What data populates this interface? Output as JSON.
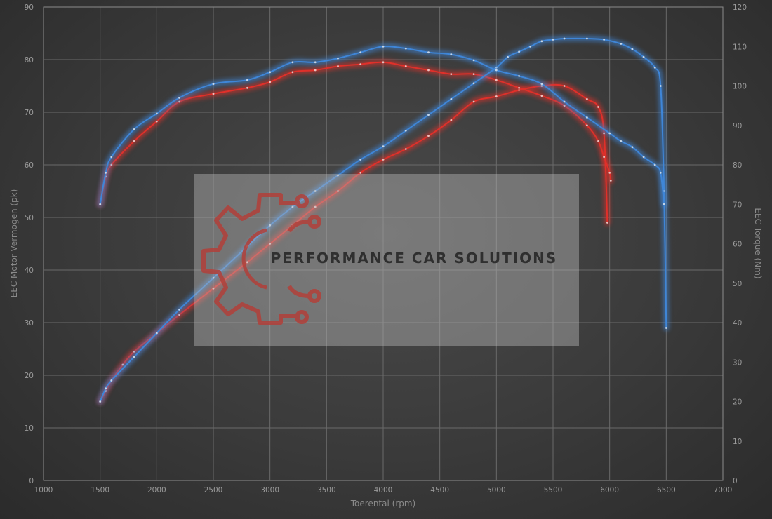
{
  "chart_data": {
    "type": "line",
    "xlabel": "Toerental (rpm)",
    "ylabel_left": "EEC Motor Vermogen (pk)",
    "ylabel_right": "EEC Torque (Nm)",
    "xlim": [
      1000,
      7000
    ],
    "ylim_left": [
      0,
      90
    ],
    "ylim_right": [
      0,
      120
    ],
    "x_ticks": [
      1000,
      1500,
      2000,
      2500,
      3000,
      3500,
      4000,
      4500,
      5000,
      5500,
      6000,
      6500,
      7000
    ],
    "y_left_ticks": [
      0,
      10,
      20,
      30,
      40,
      50,
      60,
      70,
      80,
      90
    ],
    "y_right_ticks": [
      0,
      10,
      20,
      30,
      40,
      50,
      60,
      70,
      80,
      90,
      100,
      110,
      120
    ],
    "grid": true,
    "series": [
      {
        "color": "#e0302a",
        "axis": "left",
        "x": [
          1500,
          1550,
          1600,
          1700,
          1800,
          2000,
          2200,
          2500,
          2800,
          3000,
          3200,
          3400,
          3600,
          3800,
          4000,
          4200,
          4400,
          4600,
          4800,
          5000,
          5200,
          5400,
          5600,
          5800,
          5900,
          5950,
          5980
        ],
        "y": [
          15,
          17,
          19,
          22,
          24.5,
          28,
          31.5,
          36.5,
          41.5,
          45,
          48.5,
          52,
          55,
          58.5,
          61,
          63,
          65.5,
          68.5,
          72,
          73,
          74.2,
          75,
          75,
          72.5,
          71,
          66,
          49
        ]
      },
      {
        "color": "#e0302a",
        "axis": "right",
        "x": [
          1500,
          1550,
          1600,
          1800,
          2000,
          2200,
          2500,
          2800,
          3000,
          3200,
          3400,
          3600,
          3800,
          4000,
          4200,
          4400,
          4600,
          4800,
          5000,
          5200,
          5400,
          5600,
          5800,
          5900,
          5950,
          6000,
          6010
        ],
        "y": [
          70,
          77,
          80,
          86,
          91,
          96,
          98,
          99.5,
          101,
          103.5,
          104,
          105,
          105.5,
          106,
          105,
          104,
          103,
          103,
          101.5,
          99.5,
          97.5,
          95,
          90,
          86,
          82,
          78,
          76
        ]
      },
      {
        "color": "#3f86d8",
        "axis": "left",
        "x": [
          1500,
          1550,
          1600,
          1800,
          2000,
          2200,
          2500,
          2800,
          3000,
          3200,
          3400,
          3600,
          3800,
          4000,
          4200,
          4400,
          4600,
          4800,
          5000,
          5100,
          5200,
          5300,
          5400,
          5500,
          5600,
          5800,
          5950,
          6100,
          6200,
          6300,
          6400,
          6450,
          6480,
          6500
        ],
        "y": [
          15,
          17.5,
          19,
          23.5,
          28,
          32.5,
          38.5,
          44.5,
          48.5,
          52,
          55,
          58,
          61,
          63.5,
          66.5,
          69.5,
          72.5,
          75.5,
          78.5,
          80.5,
          81.5,
          82.5,
          83.5,
          83.8,
          84,
          84,
          83.8,
          83,
          82,
          80.5,
          78.5,
          75,
          55,
          29
        ]
      },
      {
        "color": "#3f86d8",
        "axis": "right",
        "x": [
          1500,
          1550,
          1600,
          1800,
          2000,
          2200,
          2500,
          2800,
          3000,
          3200,
          3400,
          3600,
          3800,
          4000,
          4200,
          4400,
          4600,
          4800,
          5000,
          5200,
          5400,
          5600,
          5800,
          6000,
          6100,
          6200,
          6300,
          6400,
          6450,
          6480
        ],
        "y": [
          70,
          78,
          82,
          89,
          93,
          97,
          100.5,
          101.5,
          103.5,
          106,
          106,
          107,
          108.5,
          110,
          109.5,
          108.5,
          108,
          106.5,
          104,
          102.5,
          100.5,
          96,
          92,
          88,
          86,
          84.5,
          82,
          80,
          78,
          70
        ]
      }
    ]
  },
  "watermark": {
    "text": "PERFORMANCE CAR SOLUTIONS"
  }
}
